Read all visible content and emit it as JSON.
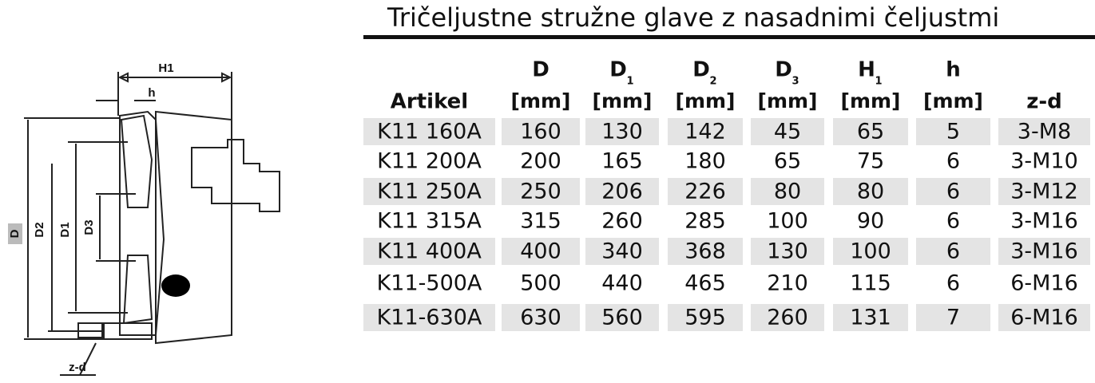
{
  "title": "Tričeljustne stružne glave z nasadnimi čeljustmi",
  "diagram": {
    "labels": {
      "H1": "H1",
      "h": "h",
      "D": "D",
      "D2": "D2",
      "D1": "D1",
      "D3": "D3",
      "zd": "z-d"
    }
  },
  "table": {
    "headers": [
      {
        "symbol": "Artikel"
      },
      {
        "symbol": "D",
        "unit": "[mm]"
      },
      {
        "symbol": "D",
        "sub": "1",
        "unit": "[mm]"
      },
      {
        "symbol": "D",
        "sub": "2",
        "unit": "[mm]"
      },
      {
        "symbol": "D",
        "sub": "3",
        "unit": "[mm]"
      },
      {
        "symbol": "H",
        "sub": "1",
        "unit": "[mm]"
      },
      {
        "symbol": "h",
        "unit": "[mm]"
      },
      {
        "symbol": "z-d"
      }
    ],
    "rows": [
      [
        "K11 160A",
        "160",
        "130",
        "142",
        "45",
        "65",
        "5",
        "3-M8"
      ],
      [
        "K11 200A",
        "200",
        "165",
        "180",
        "65",
        "75",
        "6",
        "3-M10"
      ],
      [
        "K11 250A",
        "250",
        "206",
        "226",
        "80",
        "80",
        "6",
        "3-M12"
      ],
      [
        "K11 315A",
        "315",
        "260",
        "285",
        "100",
        "90",
        "6",
        "3-M16"
      ],
      [
        "K11 400A",
        "400",
        "340",
        "368",
        "130",
        "100",
        "6",
        "3-M16"
      ],
      [
        "K11-500A",
        "500",
        "440",
        "465",
        "210",
        "115",
        "6",
        "6-M16"
      ],
      [
        "K11-630A",
        "630",
        "560",
        "595",
        "260",
        "131",
        "7",
        "6-M16"
      ]
    ]
  }
}
